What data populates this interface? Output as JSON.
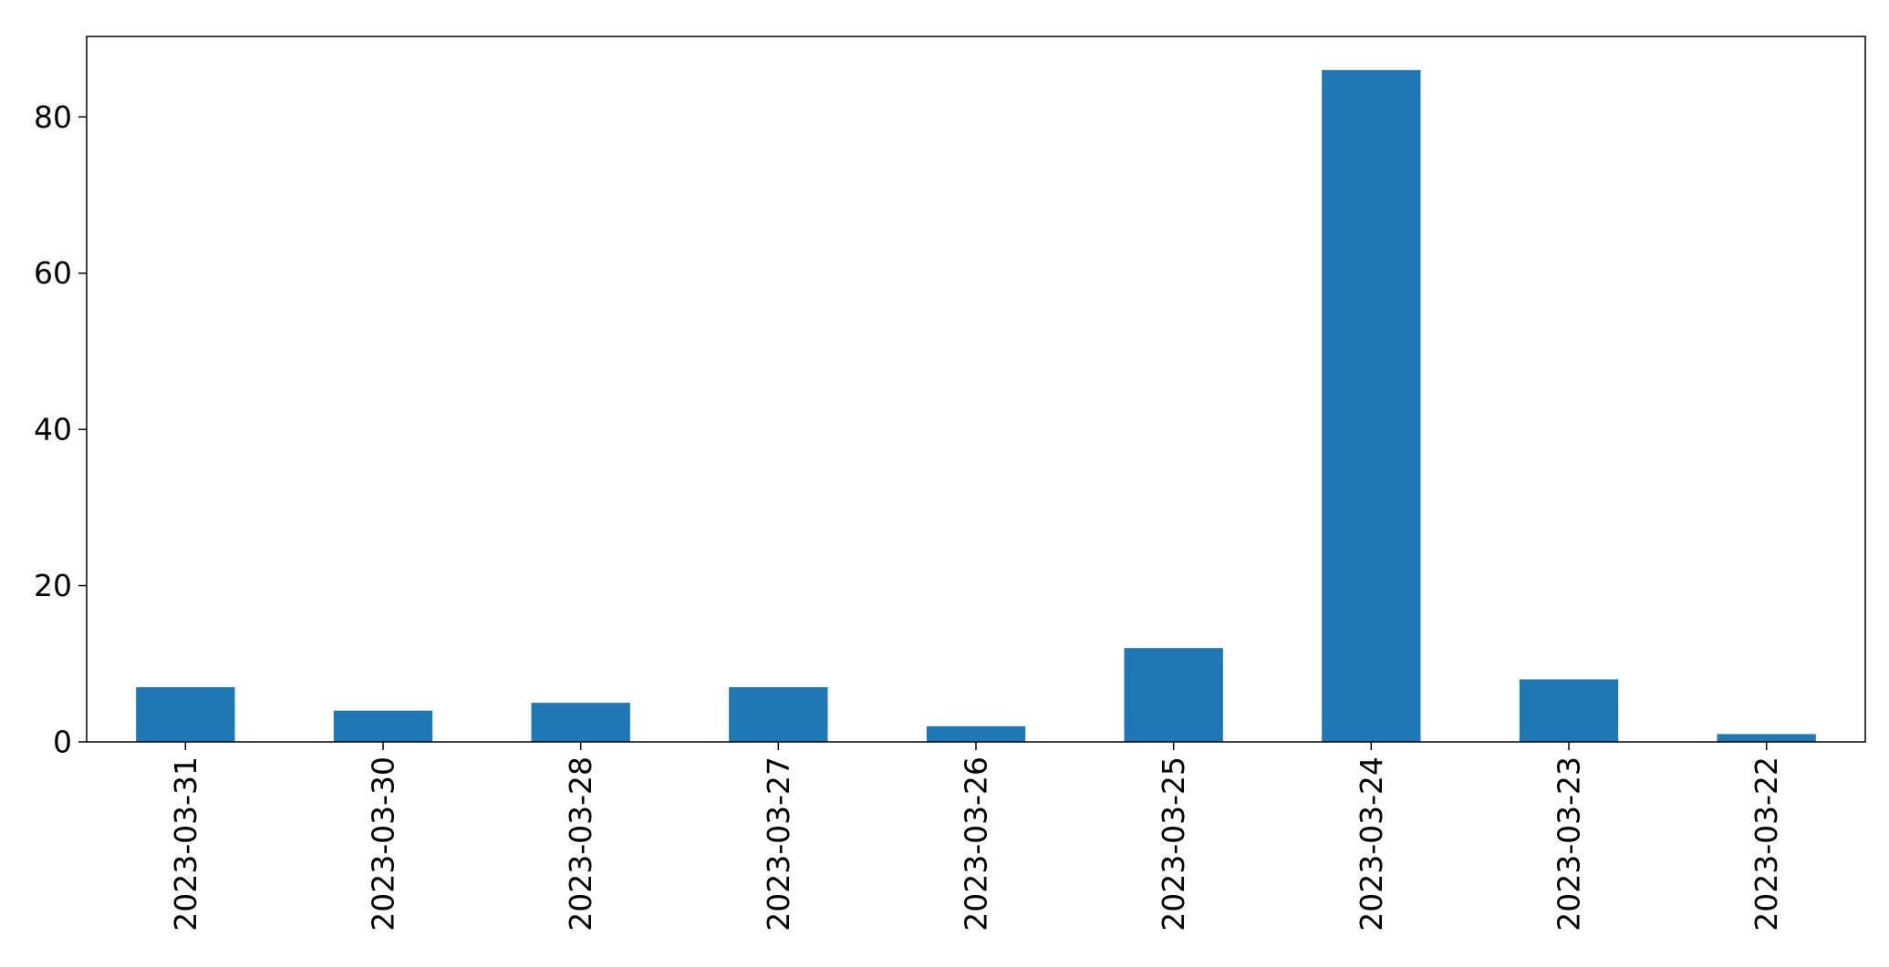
{
  "chart_data": {
    "type": "bar",
    "categories": [
      "2023-03-31",
      "2023-03-30",
      "2023-03-28",
      "2023-03-27",
      "2023-03-26",
      "2023-03-25",
      "2023-03-24",
      "2023-03-23",
      "2023-03-22"
    ],
    "values": [
      7,
      4,
      5,
      7,
      2,
      12,
      86,
      8,
      1
    ],
    "ylim": [
      0,
      90.3
    ],
    "yticks": [
      0,
      20,
      40,
      60,
      80
    ],
    "ytick_labels": [
      "0",
      "20",
      "40",
      "60",
      "80"
    ],
    "title": "",
    "xlabel": "",
    "ylabel": "",
    "grid": false,
    "legend": false,
    "bar_color": "#1f77b4",
    "axis_color": "#000000"
  }
}
